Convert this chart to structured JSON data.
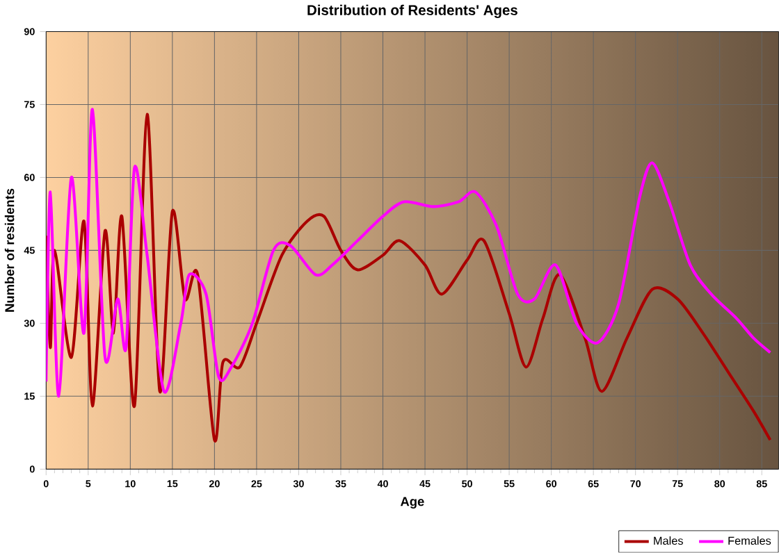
{
  "chart_data": {
    "type": "line",
    "title": "Distribution of Residents' Ages",
    "xlabel": "Age",
    "ylabel": "Number of residents",
    "xlim": [
      0,
      87
    ],
    "xticks": [
      0,
      5,
      10,
      15,
      20,
      25,
      30,
      35,
      40,
      45,
      50,
      55,
      60,
      65,
      70,
      75,
      80,
      85
    ],
    "ylim": [
      0,
      90
    ],
    "yticks": [
      0,
      15,
      30,
      45,
      60,
      75,
      90
    ],
    "grid": true,
    "legend": "bottom right",
    "marker": "none",
    "line_style": "solid",
    "series": [
      {
        "name": "Males",
        "color": "#aa0000",
        "x": [
          0,
          0.5,
          1,
          3,
          4.5,
          5.5,
          7,
          8,
          9,
          10.5,
          12,
          13.5,
          15,
          16.5,
          18,
          20,
          21,
          23,
          25,
          28,
          31,
          33,
          35,
          37,
          40,
          42,
          45,
          47,
          50,
          52,
          55,
          57,
          59,
          61,
          64,
          66,
          69,
          72,
          75,
          78,
          81,
          84,
          86
        ],
        "values": [
          48,
          25,
          45,
          23,
          51,
          13,
          49,
          28,
          52,
          13,
          73,
          16,
          53,
          35,
          40,
          6,
          22,
          21,
          30,
          44,
          51,
          52,
          45,
          41,
          44,
          47,
          42,
          36,
          43,
          47,
          32,
          21,
          31,
          40,
          27,
          16,
          27,
          37,
          35,
          28,
          20,
          12,
          6
        ]
      },
      {
        "name": "Females",
        "color": "#ff00ff",
        "x": [
          0,
          0.5,
          1.5,
          3,
          4.5,
          5.5,
          7,
          8.5,
          9.5,
          10.5,
          12,
          14,
          16,
          17,
          19,
          20.5,
          22,
          24.5,
          27,
          29,
          32,
          34,
          37,
          40,
          42.5,
          46,
          49,
          51,
          53.5,
          56,
          58,
          60.5,
          63,
          65.5,
          68,
          70.5,
          72,
          74,
          76.5,
          79,
          82,
          84,
          86
        ],
        "values": [
          18,
          57,
          15,
          60,
          28,
          74,
          23,
          35,
          25,
          62,
          44,
          16,
          30,
          40,
          36,
          19,
          21,
          30,
          45,
          46,
          40,
          42,
          47,
          52,
          55,
          54,
          55,
          57,
          50,
          36,
          35,
          42,
          30,
          26,
          34,
          56,
          63,
          55,
          42,
          36,
          31,
          27,
          24
        ]
      }
    ]
  }
}
